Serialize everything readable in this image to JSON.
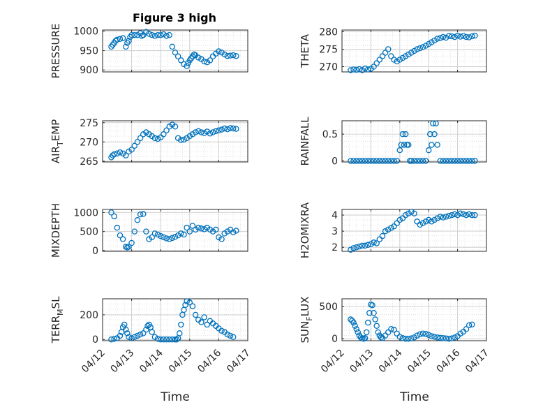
{
  "figure": {
    "title": "Figure 3 high",
    "xlabel": "Time"
  },
  "style": {
    "marker_color": "#0072BD",
    "grid_color": "#dcdcdc",
    "axis_color": "#262626"
  },
  "chart_data": [
    {
      "type": "scatter",
      "ylabel": "PRESSURE",
      "yticks": [
        "900",
        "950",
        "1000"
      ],
      "ylim": [
        895,
        1003
      ],
      "x": [
        0.3,
        0.35,
        0.4,
        0.45,
        0.5,
        0.6,
        0.7,
        0.8,
        0.85,
        0.9,
        0.95,
        1.0,
        1.1,
        1.2,
        1.3,
        1.35,
        1.4,
        1.5,
        1.6,
        1.7,
        1.8,
        1.9,
        2.0,
        2.1,
        2.2,
        2.3,
        2.4,
        2.5,
        2.6,
        2.7,
        2.8,
        2.9,
        2.95,
        3.0,
        3.05,
        3.1,
        3.15,
        3.2,
        3.3,
        3.4,
        3.5,
        3.6,
        3.7,
        3.8,
        3.9,
        4.0,
        4.1,
        4.2,
        4.3,
        4.4,
        4.5,
        4.6
      ],
      "y": [
        960,
        965,
        970,
        975,
        978,
        980,
        982,
        960,
        970,
        975,
        985,
        990,
        990,
        990,
        995,
        988,
        990,
        998,
        993,
        990,
        988,
        990,
        990,
        992,
        988,
        990,
        960,
        945,
        935,
        925,
        915,
        910,
        918,
        925,
        930,
        935,
        940,
        938,
        932,
        928,
        922,
        920,
        925,
        935,
        942,
        948,
        945,
        940,
        936,
        937,
        938,
        936
      ],
      "ticks": [
        "04/12",
        "04/13",
        "04/14",
        "04/15",
        "04/16",
        "04/17"
      ],
      "xlim": [
        0,
        5
      ],
      "grid": true
    },
    {
      "type": "scatter",
      "ylabel": "THETA",
      "yticks": [
        "270",
        "275",
        "280"
      ],
      "ylim": [
        268.5,
        280.5
      ],
      "x": [
        0.3,
        0.4,
        0.5,
        0.6,
        0.7,
        0.8,
        0.9,
        1.0,
        1.1,
        1.2,
        1.3,
        1.4,
        1.5,
        1.6,
        1.7,
        1.8,
        1.9,
        2.0,
        2.1,
        2.2,
        2.3,
        2.4,
        2.5,
        2.6,
        2.7,
        2.8,
        2.9,
        3.0,
        3.1,
        3.2,
        3.3,
        3.4,
        3.5,
        3.6,
        3.7,
        3.8,
        3.9,
        4.0,
        4.1,
        4.2,
        4.3,
        4.4,
        4.5,
        4.6
      ],
      "y": [
        269,
        269.2,
        269.1,
        269.3,
        269,
        269.5,
        269.2,
        269.4,
        270,
        271,
        272,
        273,
        274,
        275,
        273,
        272,
        271.5,
        272,
        272.5,
        273,
        273.5,
        274,
        274.5,
        275,
        275.3,
        275.6,
        276,
        276.5,
        277,
        277.5,
        278,
        278.2,
        278.5,
        278.3,
        278.8,
        278.7,
        278.5,
        278.9,
        278.6,
        278.8,
        278.5,
        278.4,
        278.7,
        278.9
      ],
      "ticks": [
        "04/12",
        "04/13",
        "04/14",
        "04/15",
        "04/16",
        "04/17"
      ],
      "xlim": [
        0,
        5
      ],
      "grid": true
    },
    {
      "type": "scatter",
      "ylabel": "AIR_TEMP",
      "ylabel_main": "AIR",
      "ylabel_sub": "T",
      "ylabel_rest": "EMP",
      "yticks": [
        "265",
        "270",
        "275"
      ],
      "ylim": [
        264.8,
        275.5
      ],
      "x": [
        0.3,
        0.35,
        0.4,
        0.5,
        0.6,
        0.7,
        0.8,
        0.9,
        1.0,
        1.1,
        1.2,
        1.3,
        1.4,
        1.5,
        1.6,
        1.7,
        1.8,
        1.9,
        2.0,
        2.1,
        2.2,
        2.3,
        2.4,
        2.5,
        2.6,
        2.7,
        2.8,
        2.9,
        3.0,
        3.1,
        3.2,
        3.3,
        3.4,
        3.5,
        3.6,
        3.7,
        3.8,
        3.9,
        4.0,
        4.1,
        4.2,
        4.3,
        4.4,
        4.5,
        4.6
      ],
      "y": [
        266,
        266.5,
        266.8,
        267,
        267.3,
        267,
        266.5,
        267.5,
        268,
        269,
        270,
        271,
        272,
        272.5,
        272,
        271.5,
        271,
        270.8,
        271.2,
        272,
        273,
        274,
        274.5,
        274,
        271,
        270.5,
        270.6,
        271,
        271.5,
        272,
        272.5,
        272.8,
        272.5,
        272.3,
        272.7,
        272.2,
        272.5,
        272.8,
        273,
        273.2,
        273.5,
        273.3,
        273.6,
        273.5,
        273.4
      ],
      "ticks": [
        "04/12",
        "04/13",
        "04/14",
        "04/15",
        "04/16",
        "04/17"
      ],
      "xlim": [
        0,
        5
      ],
      "grid": true
    },
    {
      "type": "scatter",
      "ylabel": "RAINFALL",
      "yticks": [
        "0",
        "0.5"
      ],
      "ylim": [
        -0.02,
        0.75
      ],
      "x": [
        0.3,
        0.4,
        0.5,
        0.6,
        0.7,
        0.8,
        0.9,
        1.0,
        1.1,
        1.2,
        1.3,
        1.4,
        1.5,
        1.6,
        1.7,
        1.8,
        1.9,
        2.0,
        2.05,
        2.1,
        2.15,
        2.2,
        2.25,
        2.3,
        2.35,
        2.4,
        2.5,
        2.6,
        2.7,
        2.8,
        2.9,
        3.0,
        3.05,
        3.1,
        3.15,
        3.2,
        3.25,
        3.3,
        3.4,
        3.5,
        3.6,
        3.7,
        3.8,
        3.9,
        4.0,
        4.1,
        4.2,
        4.3,
        4.4,
        4.5,
        4.6
      ],
      "y": [
        0,
        0,
        0,
        0,
        0,
        0,
        0,
        0,
        0,
        0,
        0,
        0,
        0,
        0,
        0,
        0,
        0,
        0.2,
        0.3,
        0.5,
        0.3,
        0.5,
        0.3,
        0.3,
        0,
        0,
        0,
        0,
        0,
        0,
        0,
        0.2,
        0.5,
        0.3,
        0.7,
        0.5,
        0.7,
        0.3,
        0,
        0,
        0,
        0,
        0,
        0,
        0,
        0,
        0,
        0,
        0,
        0,
        0
      ],
      "ticks": [
        "04/12",
        "04/13",
        "04/14",
        "04/15",
        "04/16",
        "04/17"
      ],
      "xlim": [
        0,
        5
      ],
      "grid": true
    },
    {
      "type": "scatter",
      "ylabel": "MIXDEPTH",
      "yticks": [
        "0",
        "500",
        "1000"
      ],
      "ylim": [
        -20,
        1080
      ],
      "x": [
        0.3,
        0.4,
        0.5,
        0.6,
        0.7,
        0.8,
        0.85,
        0.9,
        1.0,
        1.1,
        1.2,
        1.3,
        1.4,
        1.5,
        1.6,
        1.7,
        1.8,
        1.9,
        2.0,
        2.1,
        2.2,
        2.3,
        2.4,
        2.5,
        2.6,
        2.7,
        2.8,
        2.9,
        3.0,
        3.1,
        3.2,
        3.3,
        3.4,
        3.5,
        3.6,
        3.7,
        3.8,
        3.9,
        4.0,
        4.1,
        4.2,
        4.3,
        4.4,
        4.5,
        4.6
      ],
      "y": [
        1000,
        900,
        600,
        400,
        300,
        100,
        80,
        100,
        200,
        500,
        800,
        950,
        960,
        500,
        300,
        350,
        450,
        420,
        380,
        350,
        320,
        300,
        330,
        360,
        400,
        450,
        420,
        600,
        500,
        650,
        550,
        600,
        580,
        560,
        600,
        550,
        500,
        550,
        350,
        300,
        450,
        500,
        550,
        480,
        520
      ],
      "ticks": [
        "04/12",
        "04/13",
        "04/14",
        "04/15",
        "04/16",
        "04/17"
      ],
      "xlim": [
        0,
        5
      ],
      "grid": true
    },
    {
      "type": "scatter",
      "ylabel": "H2OMIXRA",
      "yticks": [
        "2",
        "3",
        "4"
      ],
      "ylim": [
        1.75,
        4.35
      ],
      "x": [
        0.3,
        0.4,
        0.5,
        0.6,
        0.7,
        0.8,
        0.9,
        1.0,
        1.1,
        1.2,
        1.3,
        1.4,
        1.5,
        1.6,
        1.7,
        1.8,
        1.9,
        2.0,
        2.1,
        2.2,
        2.3,
        2.4,
        2.5,
        2.6,
        2.7,
        2.8,
        2.9,
        3.0,
        3.1,
        3.2,
        3.3,
        3.4,
        3.5,
        3.6,
        3.7,
        3.8,
        3.9,
        4.0,
        4.1,
        4.2,
        4.3,
        4.4,
        4.5,
        4.6
      ],
      "y": [
        1.85,
        1.95,
        2.0,
        2.05,
        2.1,
        2.1,
        2.15,
        2.2,
        2.3,
        2.25,
        2.5,
        2.7,
        3.0,
        3.1,
        3.2,
        3.3,
        3.5,
        3.7,
        3.8,
        4.0,
        4.1,
        4.2,
        4.1,
        3.6,
        3.4,
        3.5,
        3.6,
        3.7,
        3.6,
        3.7,
        3.8,
        3.9,
        3.85,
        3.9,
        3.95,
        4.0,
        4.05,
        4.0,
        4.1,
        4.05,
        4.0,
        4.05,
        4.0,
        4.0
      ],
      "ticks": [
        "04/12",
        "04/13",
        "04/14",
        "04/15",
        "04/16",
        "04/17"
      ],
      "xlim": [
        0,
        5
      ],
      "grid": true
    },
    {
      "type": "scatter",
      "ylabel": "TERR_MSL",
      "ylabel_main": "TERR",
      "ylabel_sub": "M",
      "ylabel_rest": "SL",
      "yticks": [
        "0",
        "200"
      ],
      "ylim": [
        -10,
        330
      ],
      "x": [
        0.3,
        0.4,
        0.5,
        0.6,
        0.65,
        0.7,
        0.75,
        0.8,
        0.85,
        0.9,
        1.0,
        1.1,
        1.2,
        1.3,
        1.4,
        1.5,
        1.55,
        1.6,
        1.65,
        1.7,
        1.8,
        1.9,
        2.0,
        2.1,
        2.2,
        2.3,
        2.4,
        2.5,
        2.55,
        2.6,
        2.65,
        2.7,
        2.75,
        2.8,
        2.85,
        2.9,
        3.0,
        3.1,
        3.2,
        3.3,
        3.4,
        3.5,
        3.6,
        3.7,
        3.8,
        3.9,
        4.0,
        4.1,
        4.2,
        4.3,
        4.4,
        4.5
      ],
      "y": [
        0,
        5,
        10,
        30,
        60,
        100,
        120,
        80,
        50,
        20,
        10,
        20,
        30,
        40,
        50,
        80,
        110,
        120,
        100,
        60,
        20,
        5,
        0,
        0,
        0,
        0,
        0,
        0,
        0,
        10,
        50,
        120,
        200,
        240,
        280,
        310,
        300,
        270,
        200,
        160,
        140,
        180,
        120,
        150,
        130,
        110,
        90,
        70,
        60,
        40,
        30,
        20
      ],
      "ticks": [
        "04/12",
        "04/13",
        "04/14",
        "04/15",
        "04/16",
        "04/17"
      ],
      "xlim": [
        0,
        5
      ],
      "grid": true
    },
    {
      "type": "scatter",
      "ylabel": "SUN_FLUX",
      "ylabel_main": "SUN",
      "ylabel_sub": "F",
      "ylabel_rest": "LUX",
      "yticks": [
        "0",
        "500"
      ],
      "ylim": [
        -30,
        620
      ],
      "x": [
        0.3,
        0.35,
        0.4,
        0.45,
        0.5,
        0.55,
        0.6,
        0.65,
        0.7,
        0.75,
        0.8,
        0.85,
        0.9,
        0.95,
        1.0,
        1.05,
        1.1,
        1.15,
        1.2,
        1.25,
        1.3,
        1.35,
        1.4,
        1.5,
        1.6,
        1.7,
        1.8,
        1.9,
        2.0,
        2.1,
        2.2,
        2.3,
        2.4,
        2.5,
        2.6,
        2.7,
        2.8,
        2.9,
        3.0,
        3.1,
        3.2,
        3.3,
        3.4,
        3.5,
        3.6,
        3.7,
        3.8,
        3.9,
        4.0,
        4.1,
        4.2,
        4.3,
        4.4,
        4.5
      ],
      "y": [
        300,
        280,
        250,
        200,
        150,
        100,
        50,
        20,
        5,
        0,
        10,
        100,
        250,
        400,
        530,
        520,
        400,
        300,
        200,
        100,
        50,
        20,
        10,
        50,
        100,
        150,
        140,
        80,
        30,
        10,
        0,
        0,
        5,
        20,
        50,
        70,
        80,
        75,
        60,
        40,
        30,
        20,
        15,
        10,
        5,
        0,
        5,
        20,
        40,
        80,
        110,
        150,
        210,
        220
      ],
      "ticks": [
        "04/12",
        "04/13",
        "04/14",
        "04/15",
        "04/16",
        "04/17"
      ],
      "xlim": [
        0,
        5
      ],
      "grid": true
    }
  ]
}
